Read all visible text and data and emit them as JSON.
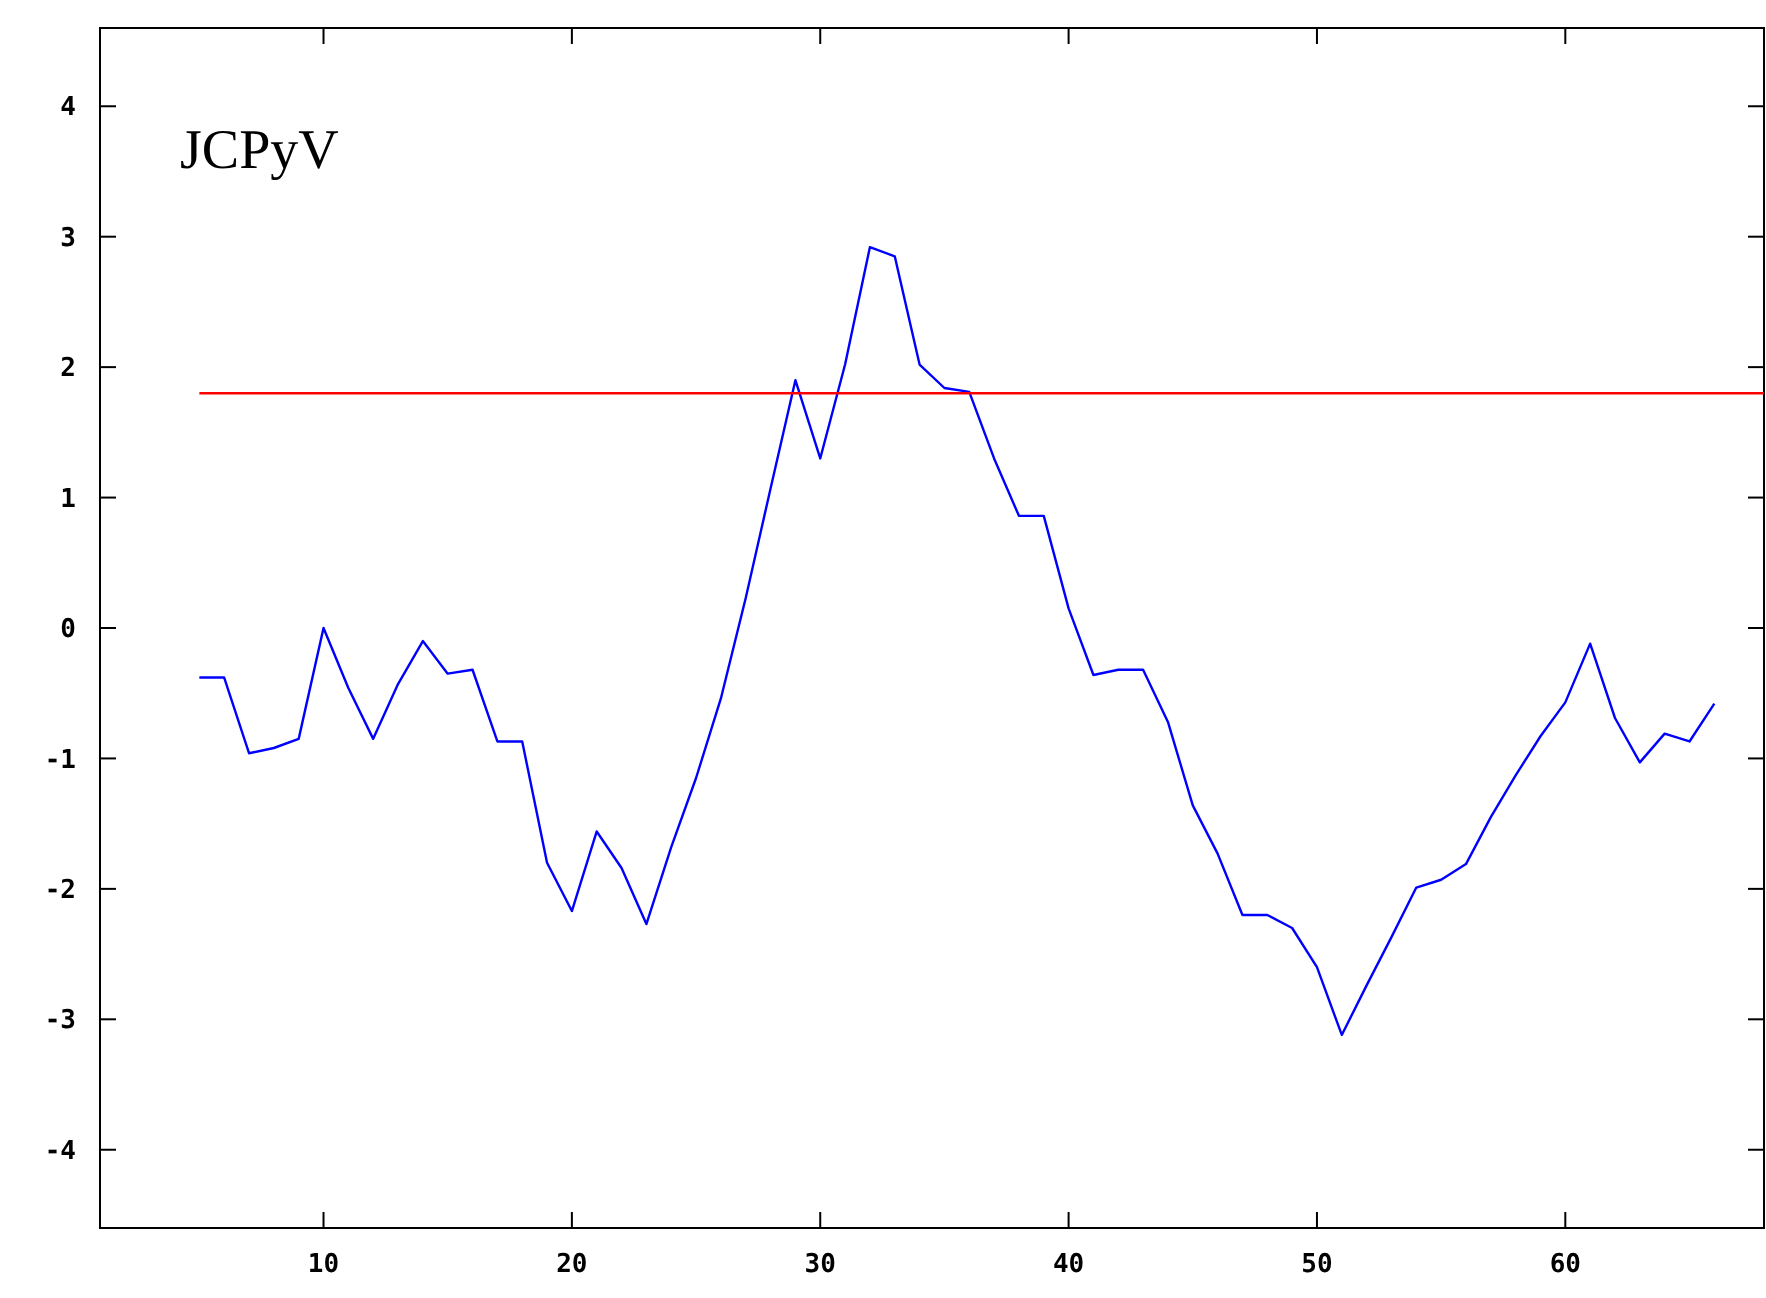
{
  "chart_data": {
    "type": "line",
    "annotations": [
      "JCPyV"
    ],
    "xlim": [
      1,
      68
    ],
    "ylim": [
      -4.6,
      4.6
    ],
    "xticks": [
      10,
      20,
      30,
      40,
      50,
      60
    ],
    "yticks": [
      -4,
      -3,
      -2,
      -1,
      0,
      1,
      2,
      3,
      4
    ],
    "grid": false,
    "marker": "none",
    "line_style": "solid",
    "series": [
      {
        "color": "#0000ff",
        "x": [
          5,
          6,
          7,
          8,
          9,
          10,
          11,
          12,
          13,
          14,
          15,
          16,
          17,
          18,
          19,
          20,
          21,
          22,
          23,
          24,
          25,
          26,
          27,
          28,
          29,
          30,
          31,
          32,
          33,
          34,
          35,
          36,
          37,
          38,
          39,
          40,
          41,
          42,
          43,
          44,
          45,
          46,
          47,
          48,
          49,
          50,
          51,
          52,
          53,
          54,
          55,
          56,
          57,
          58,
          59,
          60,
          61,
          62,
          63,
          64,
          65,
          66
        ],
        "values": [
          -0.38,
          -0.38,
          -0.96,
          -0.92,
          -0.85,
          0,
          -0.46,
          -0.85,
          -0.43,
          -0.1,
          -0.35,
          -0.32,
          -0.87,
          -0.87,
          -1.8,
          -2.17,
          -1.56,
          -1.84,
          -2.27,
          -1.68,
          -1.15,
          -0.54,
          0.23,
          1.07,
          1.9,
          1.3,
          2.02,
          2.92,
          2.85,
          2.02,
          1.84,
          1.81,
          1.3,
          0.86,
          0.86,
          0.15,
          -0.36,
          -0.32,
          -0.32,
          -0.72,
          -1.36,
          -1.73,
          -2.2,
          -2.2,
          -2.3,
          -2.6,
          -3.12,
          -2.74,
          -2.37,
          -1.99,
          -1.93,
          -1.81,
          -1.45,
          -1.13,
          -0.83,
          -0.57,
          -0.12,
          -0.69,
          -1.03,
          -0.81,
          -0.87,
          -0.58
        ]
      },
      {
        "color": "#ff0000",
        "x": [
          5,
          68
        ],
        "values": [
          1.8,
          1.8
        ]
      }
    ]
  }
}
